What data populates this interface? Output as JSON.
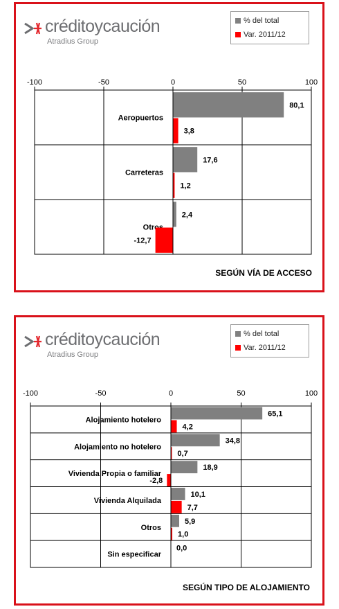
{
  "brand": {
    "name": "créditoycaución",
    "subtitle": "Atradius Group",
    "accent_color": "#d9111a",
    "mark_colors": [
      "#6d6e71",
      "#e3262c"
    ]
  },
  "legend": {
    "items": [
      {
        "label": "% del total",
        "color": "#808080"
      },
      {
        "label": "Var. 2011/12",
        "color": "#ff0000"
      }
    ]
  },
  "chart_data": [
    {
      "type": "bar",
      "orientation": "horizontal",
      "title": "SEGÚN VÍA DE ACCESO",
      "xlim": [
        -100,
        100
      ],
      "xticks": [
        "-100",
        "-50",
        "0",
        "50",
        "100"
      ],
      "grid": true,
      "legend_position": "top-right",
      "categories": [
        "Aeropuertos",
        "Carreteras",
        "Otros"
      ],
      "series": [
        {
          "name": "% del total",
          "color": "#808080",
          "values": [
            80.1,
            17.6,
            2.4
          ],
          "labels": [
            "80,1",
            "17,6",
            "2,4"
          ]
        },
        {
          "name": "Var. 2011/12",
          "color": "#ff0000",
          "values": [
            3.8,
            1.2,
            -12.7
          ],
          "labels": [
            "3,8",
            "1,2",
            "-12,7"
          ]
        }
      ]
    },
    {
      "type": "bar",
      "orientation": "horizontal",
      "title": "SEGÚN TIPO DE ALOJAMIENTO",
      "xlim": [
        -100,
        100
      ],
      "xticks": [
        "-100",
        "-50",
        "0",
        "50",
        "100"
      ],
      "grid": true,
      "legend_position": "top-right",
      "categories": [
        "Alojamiento hotelero",
        "Alojamiento no hotelero",
        "Vivienda Propia o familiar",
        "Vivienda Alquilada",
        "Otros",
        "Sin especificar"
      ],
      "series": [
        {
          "name": "% del total",
          "color": "#808080",
          "values": [
            65.1,
            34.8,
            18.9,
            10.1,
            5.9,
            0.0
          ],
          "labels": [
            "65,1",
            "34,8",
            "18,9",
            "10,1",
            "5,9",
            "0,0"
          ]
        },
        {
          "name": "Var. 2011/12",
          "color": "#ff0000",
          "values": [
            4.2,
            0.7,
            -2.8,
            7.7,
            1.0,
            null
          ],
          "labels": [
            "4,2",
            "0,7",
            "-2,8",
            "7,7",
            "1,0",
            null
          ]
        }
      ]
    }
  ]
}
